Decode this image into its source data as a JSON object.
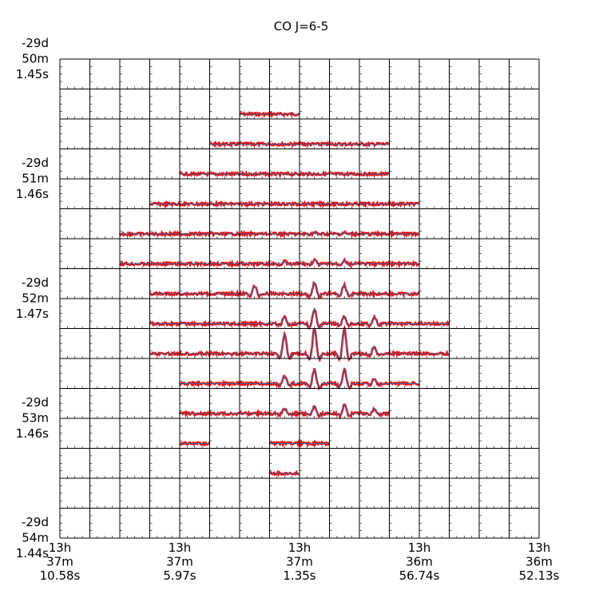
{
  "chart_data": {
    "type": "line",
    "title": "CO J=6-5",
    "xlabel": "",
    "ylabel": "",
    "grid": true,
    "layout": "spectral-line grid map, 16 columns x 16 rows of small spectrum panels",
    "columns": 16,
    "rows": 16,
    "x_ticks": [
      [
        "13h",
        "37m",
        "10.58s"
      ],
      [
        "13h",
        "37m",
        "5.97s"
      ],
      [
        "13h",
        "37m",
        "1.35s"
      ],
      [
        "13h",
        "36m",
        "56.74s"
      ],
      [
        "13h",
        "36m",
        "52.13s"
      ]
    ],
    "y_ticks": [
      [
        "-29d",
        "50m",
        "1.45s"
      ],
      [
        "-29d",
        "51m",
        "1.46s"
      ],
      [
        "-29d",
        "52m",
        "1.47s"
      ],
      [
        "-29d",
        "53m",
        "1.46s"
      ],
      [
        "-29d",
        "54m",
        "1.44s"
      ]
    ],
    "colors": {
      "observed": "#ff0000",
      "model": "#1f77b4",
      "grid": "#000000"
    },
    "spectra_extent_by_row": [
      null,
      [
        6,
        8
      ],
      [
        5,
        11
      ],
      [
        4,
        11
      ],
      [
        3,
        12
      ],
      [
        2,
        12
      ],
      [
        2,
        12
      ],
      [
        3,
        12
      ],
      [
        3,
        13
      ],
      [
        3,
        13
      ],
      [
        4,
        12
      ],
      [
        4,
        11
      ],
      [
        4,
        5,
        7,
        9
      ],
      [
        7,
        8
      ],
      null,
      null
    ],
    "peak_amplitudes": {
      "7": {
        "6": 0.3,
        "8": 0.45,
        "9": 0.35
      },
      "8": {
        "7": 0.25,
        "8": 0.6,
        "9": 0.3,
        "10": 0.25
      },
      "9": {
        "7": 0.75,
        "8": 1.0,
        "9": 0.95,
        "10": 0.3
      },
      "10": {
        "7": 0.3,
        "8": 0.55,
        "9": 0.55,
        "10": 0.2
      },
      "11": {
        "7": 0.2,
        "8": 0.3,
        "9": 0.35,
        "10": 0.2
      },
      "6": {
        "7": 0.1,
        "8": 0.15,
        "9": 0.15
      },
      "5": {
        "8": 0.05,
        "9": 0.05
      }
    }
  }
}
